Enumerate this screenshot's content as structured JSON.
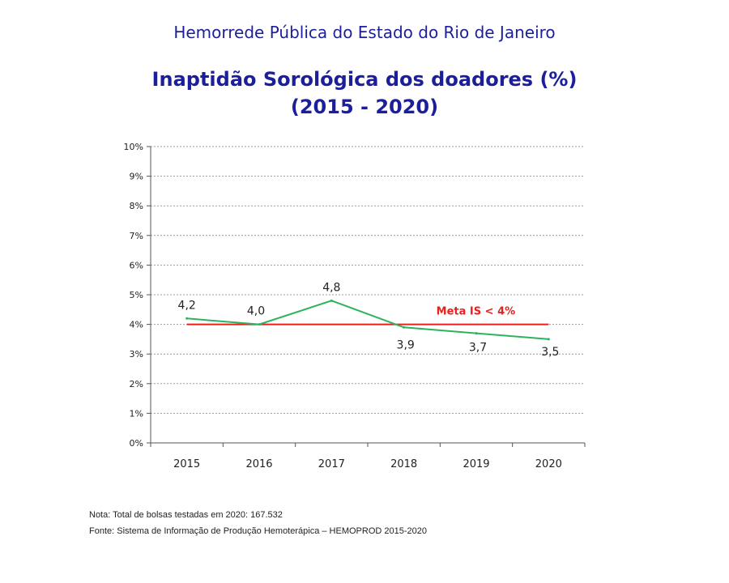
{
  "header": {
    "institution": "Hemorrede Pública do Estado do Rio de Janeiro",
    "title": "Inaptidão Sorológica dos doadores (%)",
    "subtitle": "(2015 - 2020)"
  },
  "chart_data": {
    "type": "line",
    "categories": [
      "2015",
      "2016",
      "2017",
      "2018",
      "2019",
      "2020"
    ],
    "series": [
      {
        "values": [
          4.2,
          4.0,
          4.8,
          3.9,
          3.7,
          3.5
        ],
        "color": "#2db35c",
        "labels": [
          "4,2",
          "4,0",
          "4,8",
          "3,9",
          "3,7",
          "3,5"
        ]
      }
    ],
    "target": {
      "label": "Meta IS < 4%",
      "value": 4,
      "color": "#e8201d"
    },
    "ylim": [
      0,
      10
    ],
    "yticks": [
      "0%",
      "1%",
      "2%",
      "3%",
      "4%",
      "5%",
      "6%",
      "7%",
      "8%",
      "9%",
      "10%"
    ],
    "grid": true,
    "xlabel": "",
    "ylabel": ""
  },
  "footer": {
    "note": "Nota: Total de bolsas testadas em 2020: 167.532",
    "source": "Fonte: Sistema de Informação de Produção Hemoterápica – HEMOPROD 2015-2020"
  }
}
